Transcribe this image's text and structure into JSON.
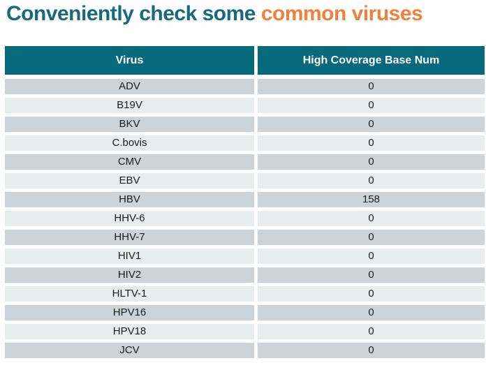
{
  "title": {
    "prefix": "Conveniently check some ",
    "highlight": "common viruses"
  },
  "colors": {
    "title_teal": "#17697B",
    "title_orange": "#F0813C",
    "header_teal": "#066A7C",
    "row_dark": "#CDD3D6",
    "row_light": "#E9ECED",
    "background": "#FFFFFF"
  },
  "table": {
    "columns": [
      "Virus",
      "High Coverage Base Num"
    ],
    "rows": [
      {
        "virus": "ADV",
        "value": "0"
      },
      {
        "virus": "B19V",
        "value": "0"
      },
      {
        "virus": "BKV",
        "value": "0"
      },
      {
        "virus": "C.bovis",
        "value": "0"
      },
      {
        "virus": "CMV",
        "value": "0"
      },
      {
        "virus": "EBV",
        "value": "0"
      },
      {
        "virus": "HBV",
        "value": "158"
      },
      {
        "virus": "HHV-6",
        "value": "0"
      },
      {
        "virus": "HHV-7",
        "value": "0"
      },
      {
        "virus": "HIV1",
        "value": "0"
      },
      {
        "virus": "HIV2",
        "value": "0"
      },
      {
        "virus": "HLTV-1",
        "value": "0"
      },
      {
        "virus": "HPV16",
        "value": "0"
      },
      {
        "virus": "HPV18",
        "value": "0"
      },
      {
        "virus": "JCV",
        "value": "0"
      }
    ]
  }
}
